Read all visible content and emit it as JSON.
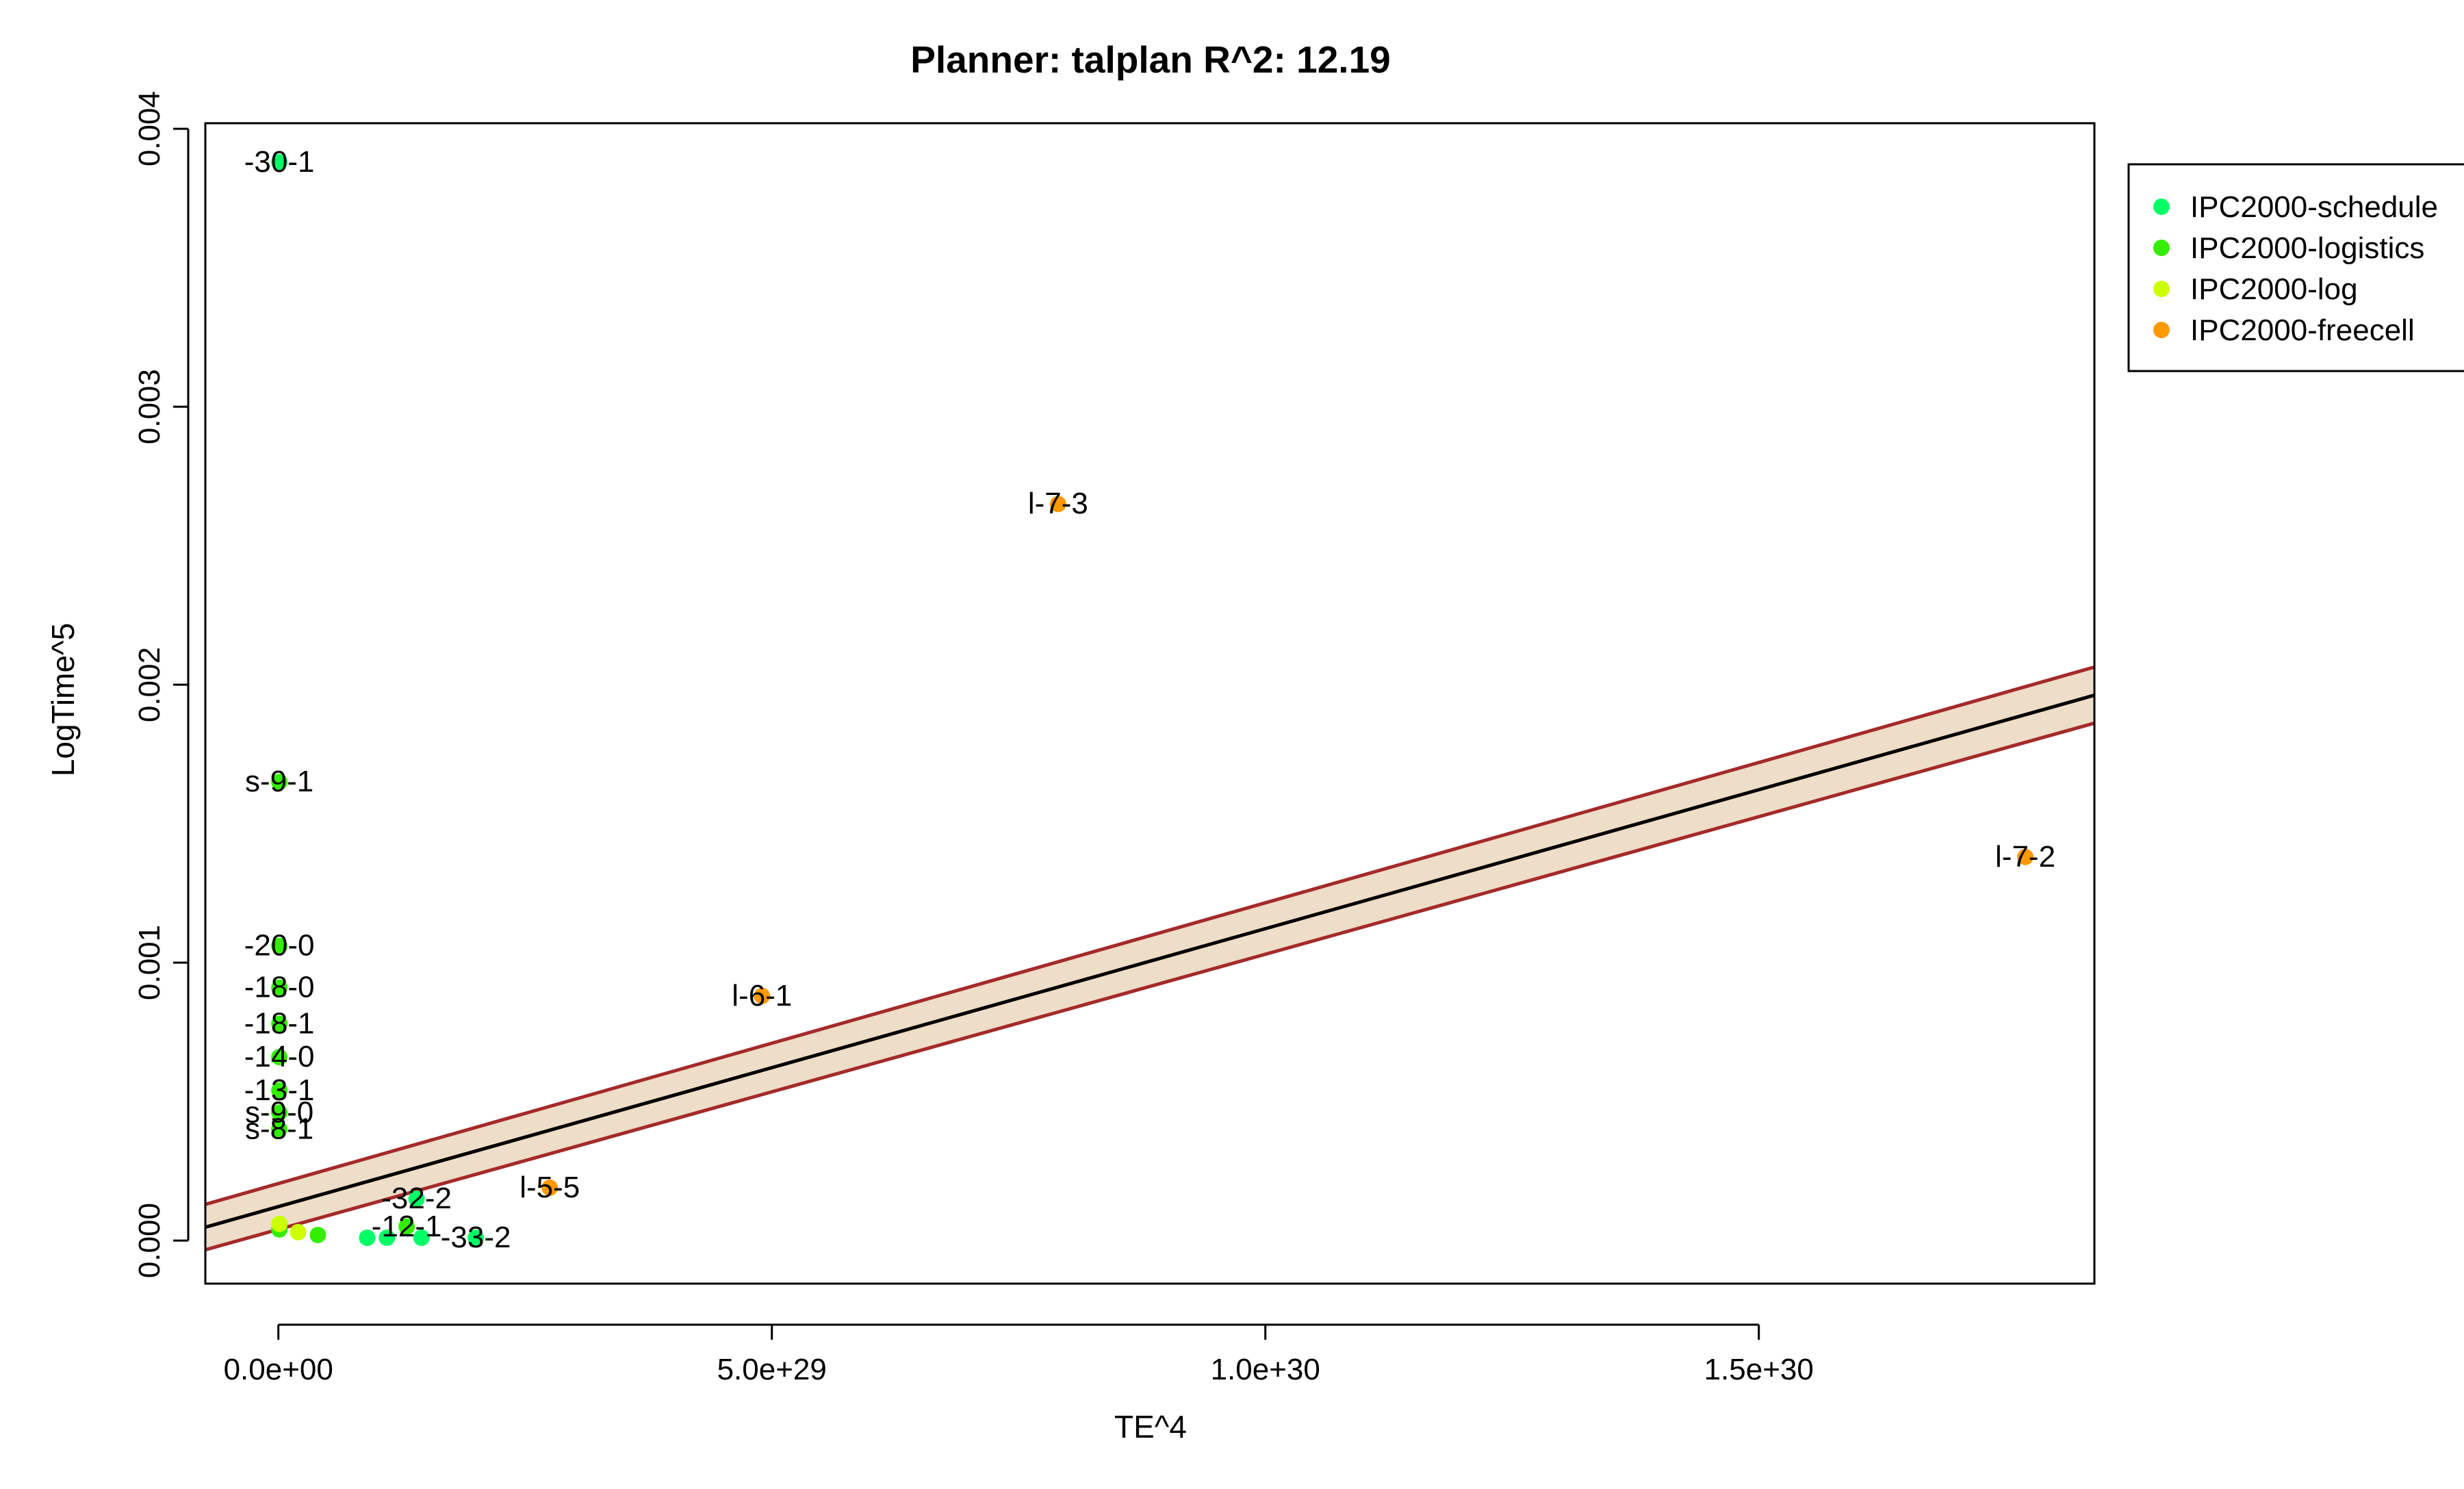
{
  "colors": {
    "band_fill": "#EEDDC8",
    "band_edge": "#A52A2A",
    "fit_line": "#000000",
    "axis": "#000000"
  },
  "chart_data": {
    "type": "scatter",
    "title": "Planner: talplan R^2: 12.19",
    "xlabel": "TE^4",
    "ylabel": "LogTime^5",
    "xlim": [
      -7.4e+28,
      1.84e+30
    ],
    "ylim": [
      -0.000155,
      0.00402
    ],
    "x_ticks": [
      0,
      5e+29,
      1e+30,
      1.5e+30
    ],
    "x_tick_labels": [
      "0.0e+00",
      "5.0e+29",
      "1.0e+30",
      "1.5e+30"
    ],
    "y_ticks": [
      0,
      0.001,
      0.002,
      0.003,
      0.004
    ],
    "y_tick_labels": [
      "0.000",
      "0.001",
      "0.002",
      "0.003",
      "0.004"
    ],
    "grid": false,
    "legend_position": "top-right, outside plot area",
    "fit_line": {
      "intercept": 0.000122,
      "slope": 1e-33
    },
    "confidence_band": {
      "intercept_lower": 4e-05,
      "intercept_upper": 0.000205,
      "slope_lower": 9.9e-34,
      "slope_upper": 1.01e-33
    },
    "series": [
      {
        "name": "IPC2000-schedule",
        "color": "#00FF66",
        "points": [
          {
            "x": 1e+27,
            "y": 0.00388,
            "label": "-30-1"
          },
          {
            "x": 1.4e+29,
            "y": 0.00015,
            "label": "-32-2"
          },
          {
            "x": 2e+29,
            "y": 1e-05,
            "label": "-33-2"
          },
          {
            "x": 1.45e+29,
            "y": 1e-05,
            "label": ""
          },
          {
            "x": 1.1e+29,
            "y": 1e-05,
            "label": ""
          },
          {
            "x": 9e+28,
            "y": 1e-05,
            "label": ""
          }
        ]
      },
      {
        "name": "IPC2000-logistics",
        "color": "#33EE00",
        "points": [
          {
            "x": 1e+27,
            "y": 0.00165,
            "label": "s-9-1"
          },
          {
            "x": 1e+27,
            "y": 0.00106,
            "label": "-20-0"
          },
          {
            "x": 1e+27,
            "y": 0.00091,
            "label": "-18-0"
          },
          {
            "x": 1e+27,
            "y": 0.00078,
            "label": "-18-1"
          },
          {
            "x": 1e+27,
            "y": 0.00066,
            "label": "-14-0"
          },
          {
            "x": 1e+27,
            "y": 0.00054,
            "label": "-13-1"
          },
          {
            "x": 1e+27,
            "y": 0.00046,
            "label": "s-9-0"
          },
          {
            "x": 1e+27,
            "y": 0.0004,
            "label": "s-8-1"
          },
          {
            "x": 1.3e+29,
            "y": 5e-05,
            "label": "-12-1"
          },
          {
            "x": 1e+27,
            "y": 4e-05,
            "label": ""
          },
          {
            "x": 4e+28,
            "y": 2e-05,
            "label": ""
          }
        ]
      },
      {
        "name": "IPC2000-log",
        "color": "#CCFF00",
        "points": [
          {
            "x": 1e+27,
            "y": 6e-05,
            "label": ""
          },
          {
            "x": 2e+28,
            "y": 3e-05,
            "label": ""
          }
        ]
      },
      {
        "name": "IPC2000-freecell",
        "color": "#FF9900",
        "points": [
          {
            "x": 7.9e+29,
            "y": 0.00265,
            "label": "l-7-3"
          },
          {
            "x": 1.77e+30,
            "y": 0.00138,
            "label": "l-7-2"
          },
          {
            "x": 4.9e+29,
            "y": 0.00088,
            "label": "l-6-1"
          },
          {
            "x": 2.75e+29,
            "y": 0.00019,
            "label": "l-5-5"
          }
        ]
      }
    ]
  }
}
